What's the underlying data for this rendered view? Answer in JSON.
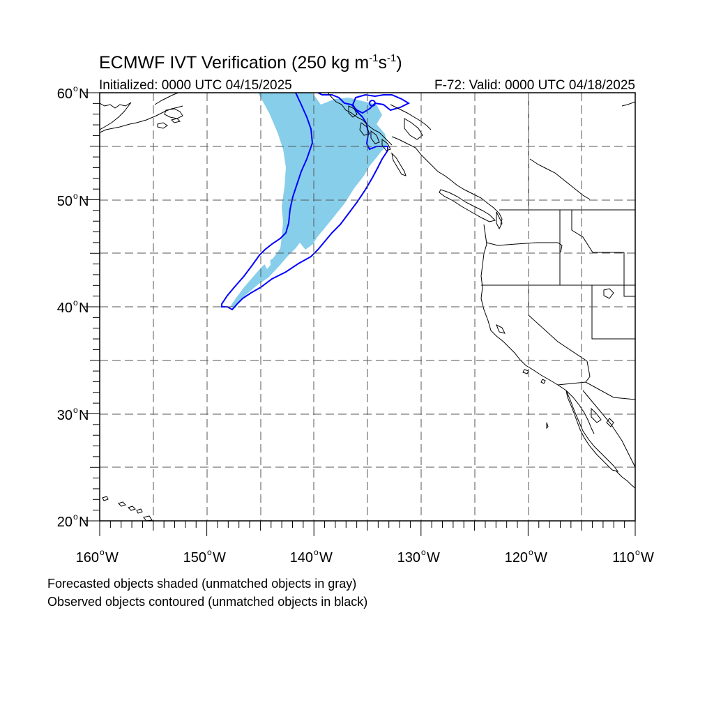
{
  "title": {
    "main": "ECMWF IVT Verification (250 kg m",
    "exp1": "-1",
    "mid": "s",
    "exp2": "-1",
    "end": ")"
  },
  "init_label": "Initialized: 0000 UTC 04/15/2025",
  "valid_label": "F-72: Valid: 0000 UTC 04/18/2025",
  "lat_labels": [
    "60",
    "50",
    "40",
    "30",
    "20"
  ],
  "lat_suffix": "N",
  "lon_labels": [
    "160",
    "150",
    "140",
    "130",
    "120",
    "110"
  ],
  "lon_suffix": "W",
  "degree_symbol": "o",
  "captions": {
    "forecast": "Forecasted objects shaded (unmatched objects in gray)",
    "observed": "Observed objects contoured (unmatched objects in black)"
  },
  "colors": {
    "forecast_fill": "#87ceeb",
    "observed_contour": "#0000ff",
    "coast": "#000000",
    "grid": "#555555"
  },
  "map_extent": {
    "lon_min": -160,
    "lon_max": -110,
    "lat_min": 20,
    "lat_max": 60
  }
}
